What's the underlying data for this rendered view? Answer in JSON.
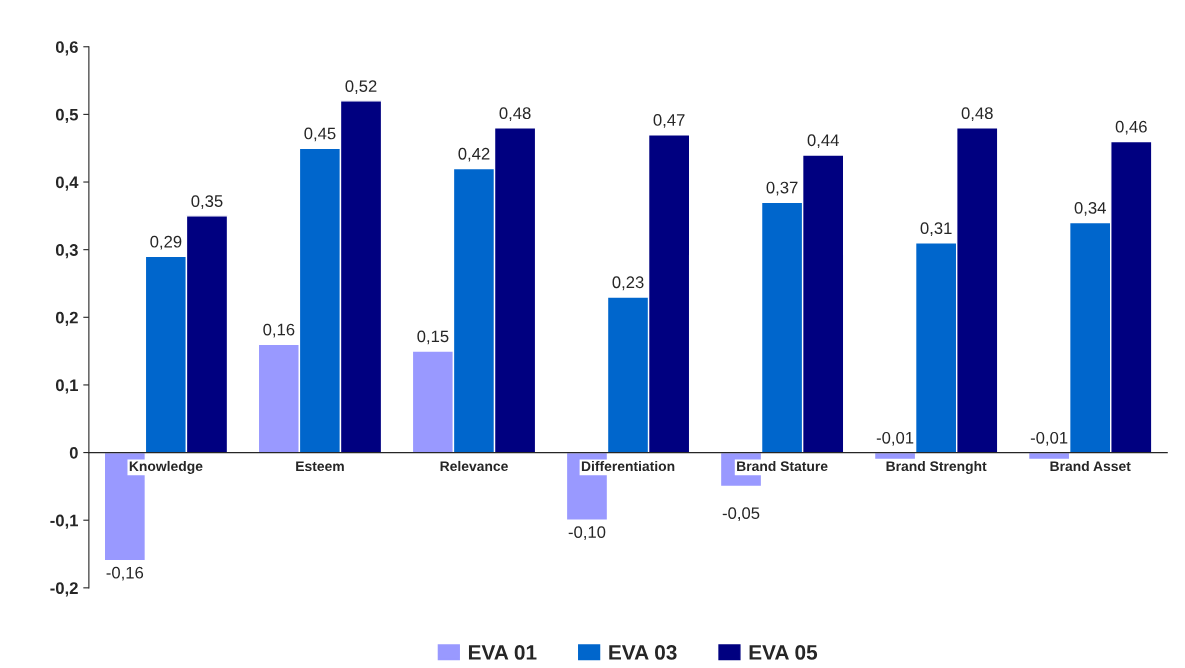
{
  "chart_data": {
    "type": "bar",
    "categories": [
      "Knowledge",
      "Esteem",
      "Relevance",
      "Differentiation",
      "Brand Stature",
      "Brand Strenght",
      "Brand Asset"
    ],
    "series": [
      {
        "name": "EVA 01",
        "color": "#9999ff",
        "values": [
          -0.16,
          0.16,
          0.15,
          -0.1,
          -0.05,
          -0.01,
          -0.01
        ],
        "value_labels": [
          "-0,16",
          "0,16",
          "0,15",
          "-0,10",
          "-0,05",
          "-0,01",
          "-0,01"
        ]
      },
      {
        "name": "EVA 03",
        "color": "#0066cc",
        "values": [
          0.29,
          0.45,
          0.42,
          0.23,
          0.37,
          0.31,
          0.34
        ],
        "value_labels": [
          "0,29",
          "0,45",
          "0,42",
          "0,23",
          "0,37",
          "0,31",
          "0,34"
        ]
      },
      {
        "name": "EVA 05",
        "color": "#000080",
        "values": [
          0.35,
          0.52,
          0.48,
          0.47,
          0.44,
          0.48,
          0.46
        ],
        "value_labels": [
          "0,35",
          "0,52",
          "0,48",
          "0,47",
          "0,44",
          "0,48",
          "0,46"
        ]
      }
    ],
    "ylim": [
      -0.2,
      0.6
    ],
    "yticks": [
      {
        "value": -0.2,
        "label": "-0,2"
      },
      {
        "value": -0.1,
        "label": "-0,1"
      },
      {
        "value": 0,
        "label": "0"
      },
      {
        "value": 0.1,
        "label": "0,1"
      },
      {
        "value": 0.2,
        "label": "0,2"
      },
      {
        "value": 0.3,
        "label": "0,3"
      },
      {
        "value": 0.4,
        "label": "0,4"
      },
      {
        "value": 0.5,
        "label": "0,5"
      },
      {
        "value": 0.6,
        "label": "0,6"
      }
    ],
    "legend": "bottom"
  }
}
